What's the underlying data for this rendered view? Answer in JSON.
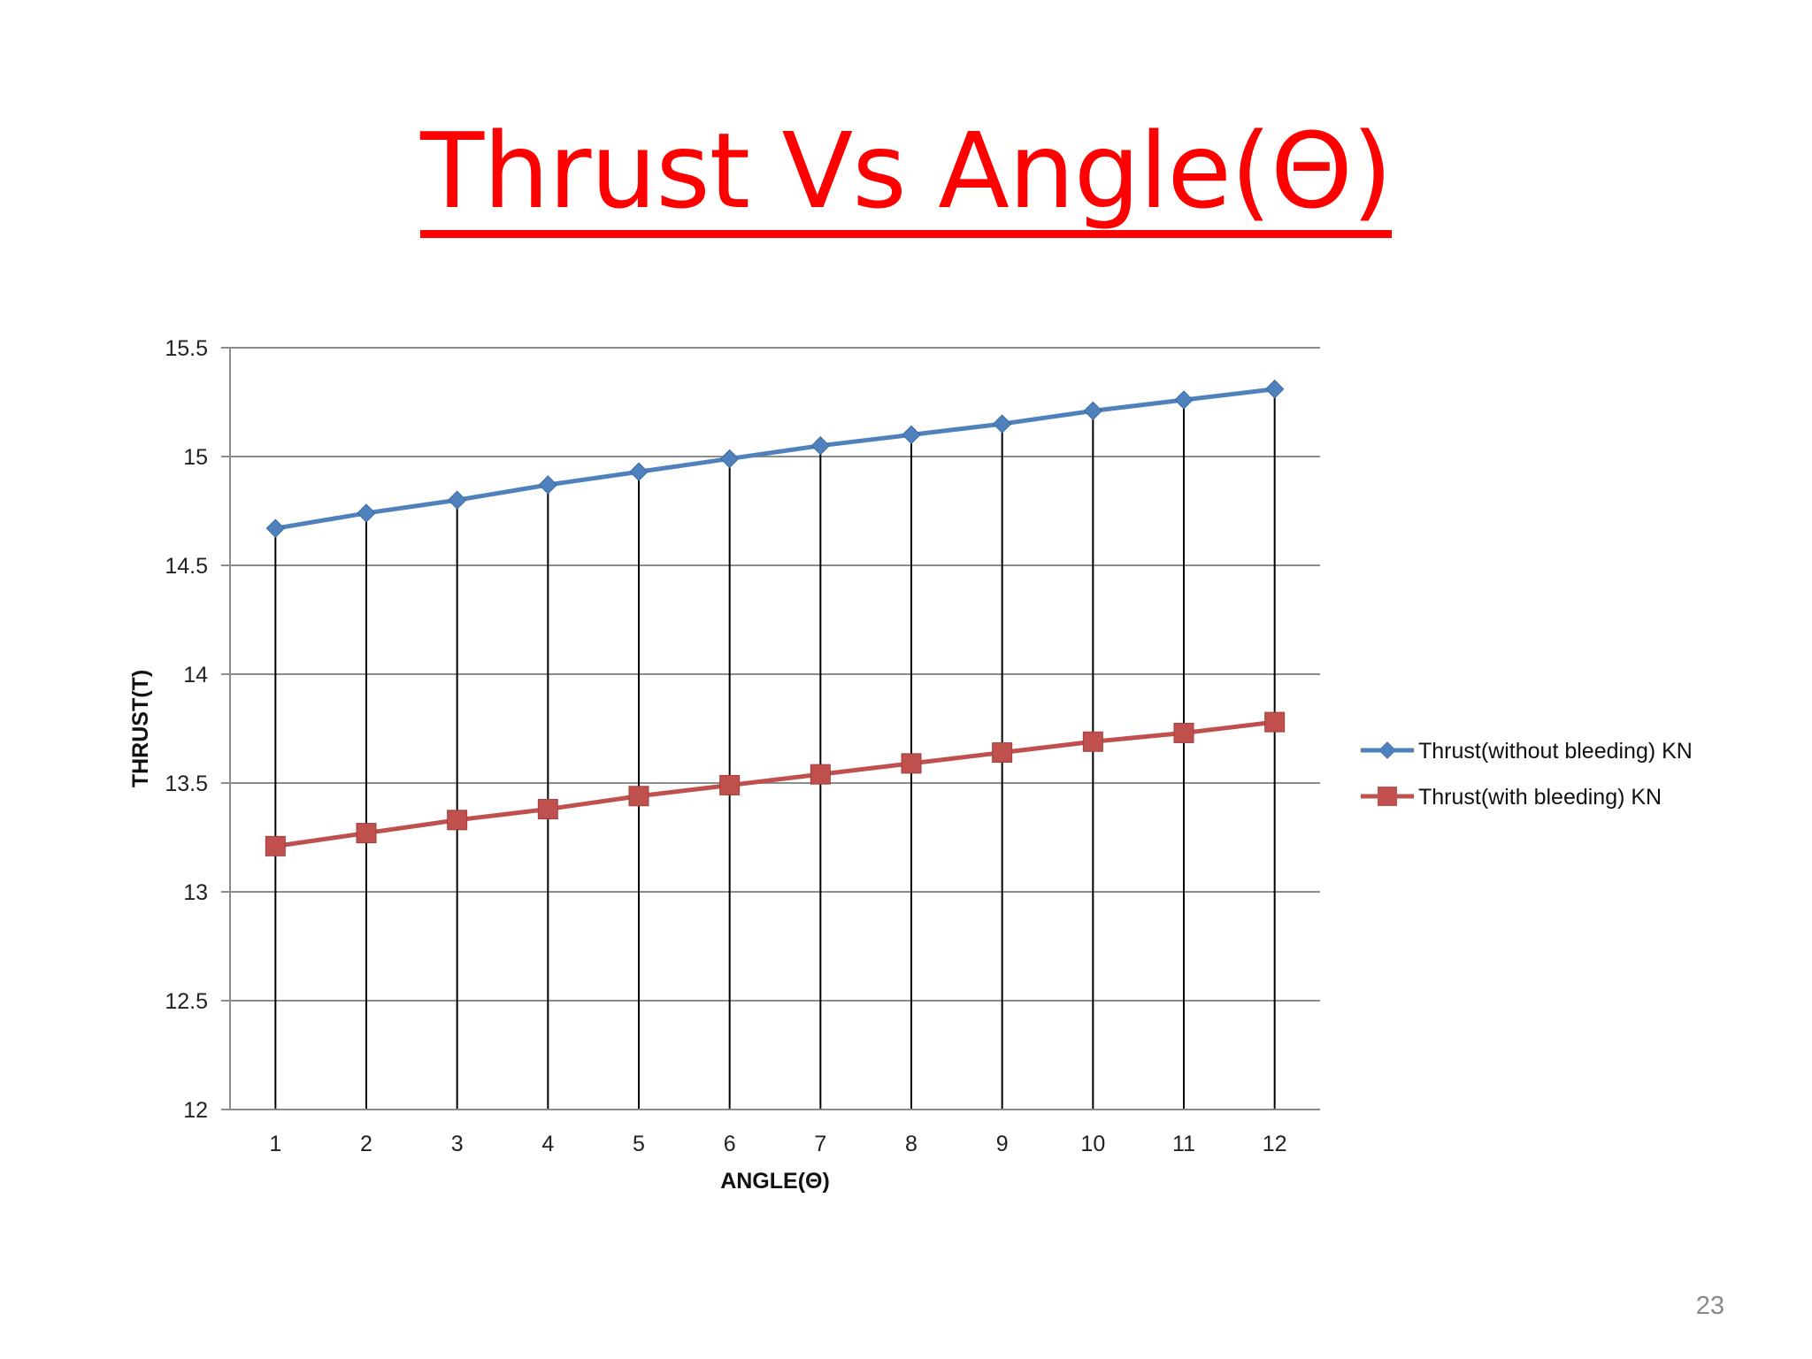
{
  "title": "Thrust Vs Angle(Θ)",
  "page_number": "23",
  "chart_data": {
    "type": "line",
    "xlabel": "ANGLE(Θ)",
    "ylabel": "THRUST(T)",
    "categories": [
      "1",
      "2",
      "3",
      "4",
      "5",
      "6",
      "7",
      "8",
      "9",
      "10",
      "11",
      "12"
    ],
    "ylim": [
      12,
      15.5
    ],
    "yticks": [
      12,
      12.5,
      13,
      13.5,
      14,
      14.5,
      15,
      15.5
    ],
    "ytick_labels": [
      "12",
      "12.5",
      "13",
      "13.5",
      "14",
      "14.5",
      "15",
      "15.5"
    ],
    "grid": "horizontal major gridlines; vertical drop lines at each category",
    "legend_position": "right",
    "series": [
      {
        "name": "Thrust(without bleeding) KN",
        "marker": "diamond",
        "color": "#4f81bd",
        "values": [
          14.67,
          14.74,
          14.8,
          14.87,
          14.93,
          14.99,
          15.05,
          15.1,
          15.15,
          15.21,
          15.26,
          15.31
        ]
      },
      {
        "name": "Thrust(with bleeding) KN",
        "marker": "square",
        "color": "#c0504d",
        "values": [
          13.21,
          13.27,
          13.33,
          13.38,
          13.44,
          13.49,
          13.54,
          13.59,
          13.64,
          13.69,
          13.73,
          13.78
        ]
      }
    ]
  }
}
